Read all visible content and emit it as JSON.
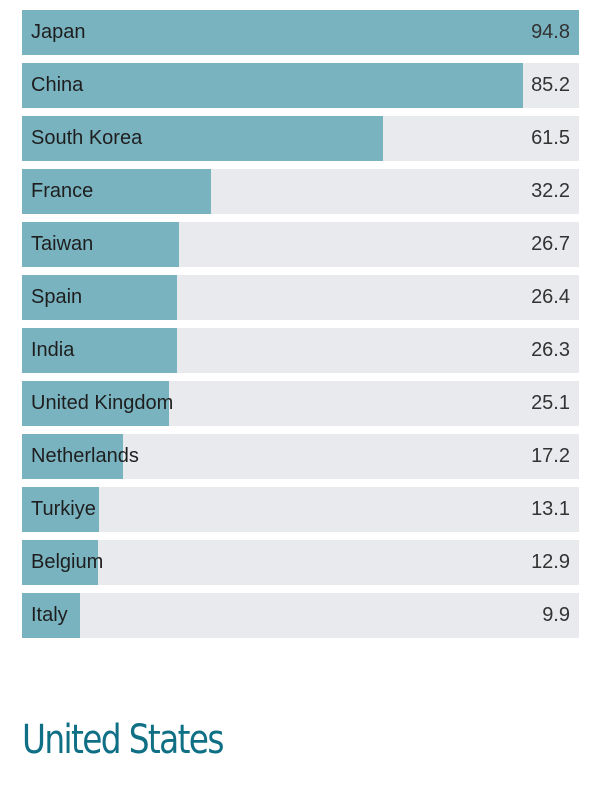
{
  "colors": {
    "bar": "#79b3c0",
    "track": "#e9eaee",
    "heading": "#0f6f85"
  },
  "chart_data": {
    "type": "bar",
    "orientation": "horizontal",
    "xlim": [
      0,
      94.8
    ],
    "categories": [
      "Japan",
      "China",
      "South Korea",
      "France",
      "Taiwan",
      "Spain",
      "India",
      "United Kingdom",
      "Netherlands",
      "Turkiye",
      "Belgium",
      "Italy"
    ],
    "values": [
      94.8,
      85.2,
      61.5,
      32.2,
      26.7,
      26.4,
      26.3,
      25.1,
      17.2,
      13.1,
      12.9,
      9.9
    ],
    "value_labels": [
      "94.8",
      "85.2",
      "61.5",
      "32.2",
      "26.7",
      "26.4",
      "26.3",
      "25.1",
      "17.2",
      "13.1",
      "12.9",
      "9.9"
    ],
    "grid": false,
    "legend": "none"
  },
  "next_section": {
    "title": "United States"
  }
}
